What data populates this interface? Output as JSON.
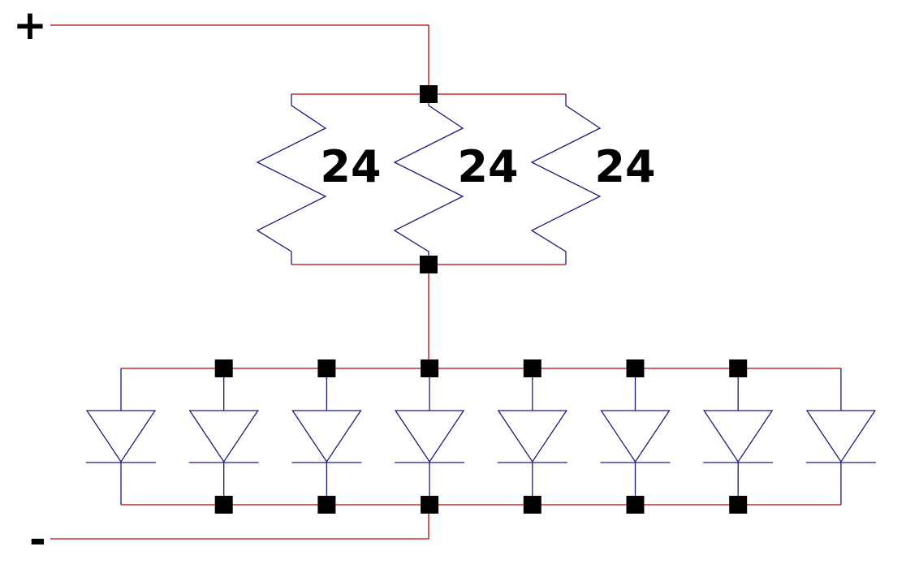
{
  "terminals": {
    "positive": "+",
    "negative": "-"
  },
  "resistors": [
    {
      "label": "24"
    },
    {
      "label": "24"
    },
    {
      "label": "24"
    }
  ],
  "diodes": {
    "count": 8
  },
  "colors": {
    "wire": "#c00000",
    "component": "#1a1a80",
    "junction": "#000000",
    "text": "#000000"
  }
}
